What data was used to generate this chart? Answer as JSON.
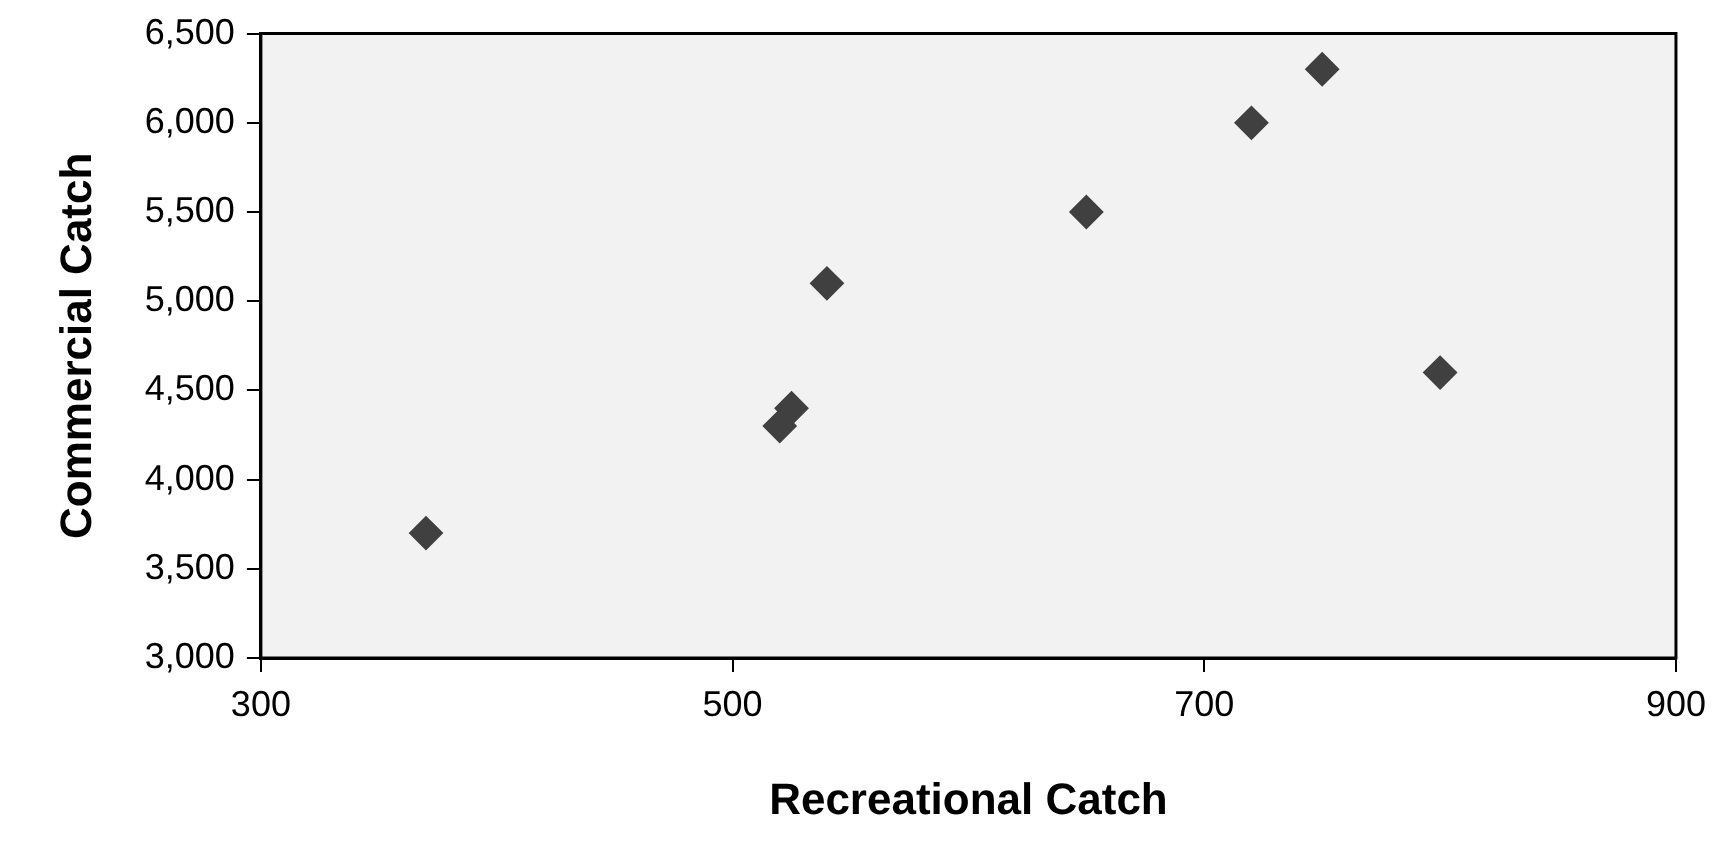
{
  "chart_data": {
    "type": "scatter",
    "xlabel": "Recreational Catch",
    "ylabel": "Commercial Catch",
    "series": [
      {
        "color": "#404040",
        "x": [
          370,
          520,
          525,
          540,
          650,
          720,
          750,
          800
        ],
        "values": [
          3700,
          4300,
          4400,
          5100,
          5500,
          6000,
          6300,
          4600
        ]
      }
    ],
    "xlim": [
      300,
      900
    ],
    "xticks": [
      300,
      500,
      700,
      900
    ],
    "ylim": [
      3000,
      6500
    ],
    "yticks": [
      {
        "value": 3000,
        "label": "3,000"
      },
      {
        "value": 3500,
        "label": "3,500"
      },
      {
        "value": 4000,
        "label": "4,000"
      },
      {
        "value": 4500,
        "label": "4,500"
      },
      {
        "value": 5000,
        "label": "5,000"
      },
      {
        "value": 5500,
        "label": "5,500"
      },
      {
        "value": 6000,
        "label": "6,000"
      },
      {
        "value": 6500,
        "label": "6,500"
      }
    ],
    "grid": false,
    "legend": false,
    "marker": "diamond"
  }
}
